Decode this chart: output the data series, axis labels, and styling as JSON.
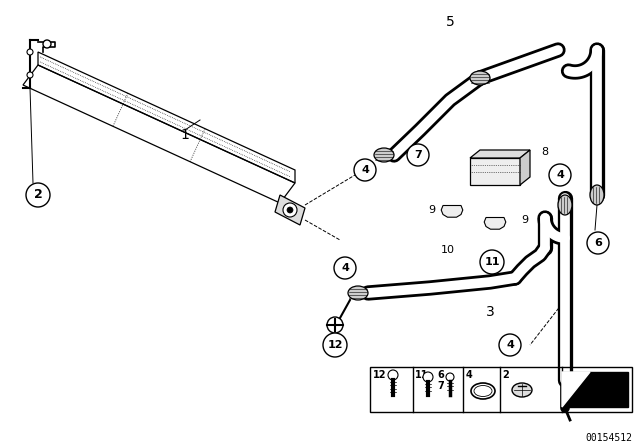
{
  "background_color": "#ffffff",
  "fig_width": 6.4,
  "fig_height": 4.48,
  "dpi": 100,
  "watermark": "00154512"
}
